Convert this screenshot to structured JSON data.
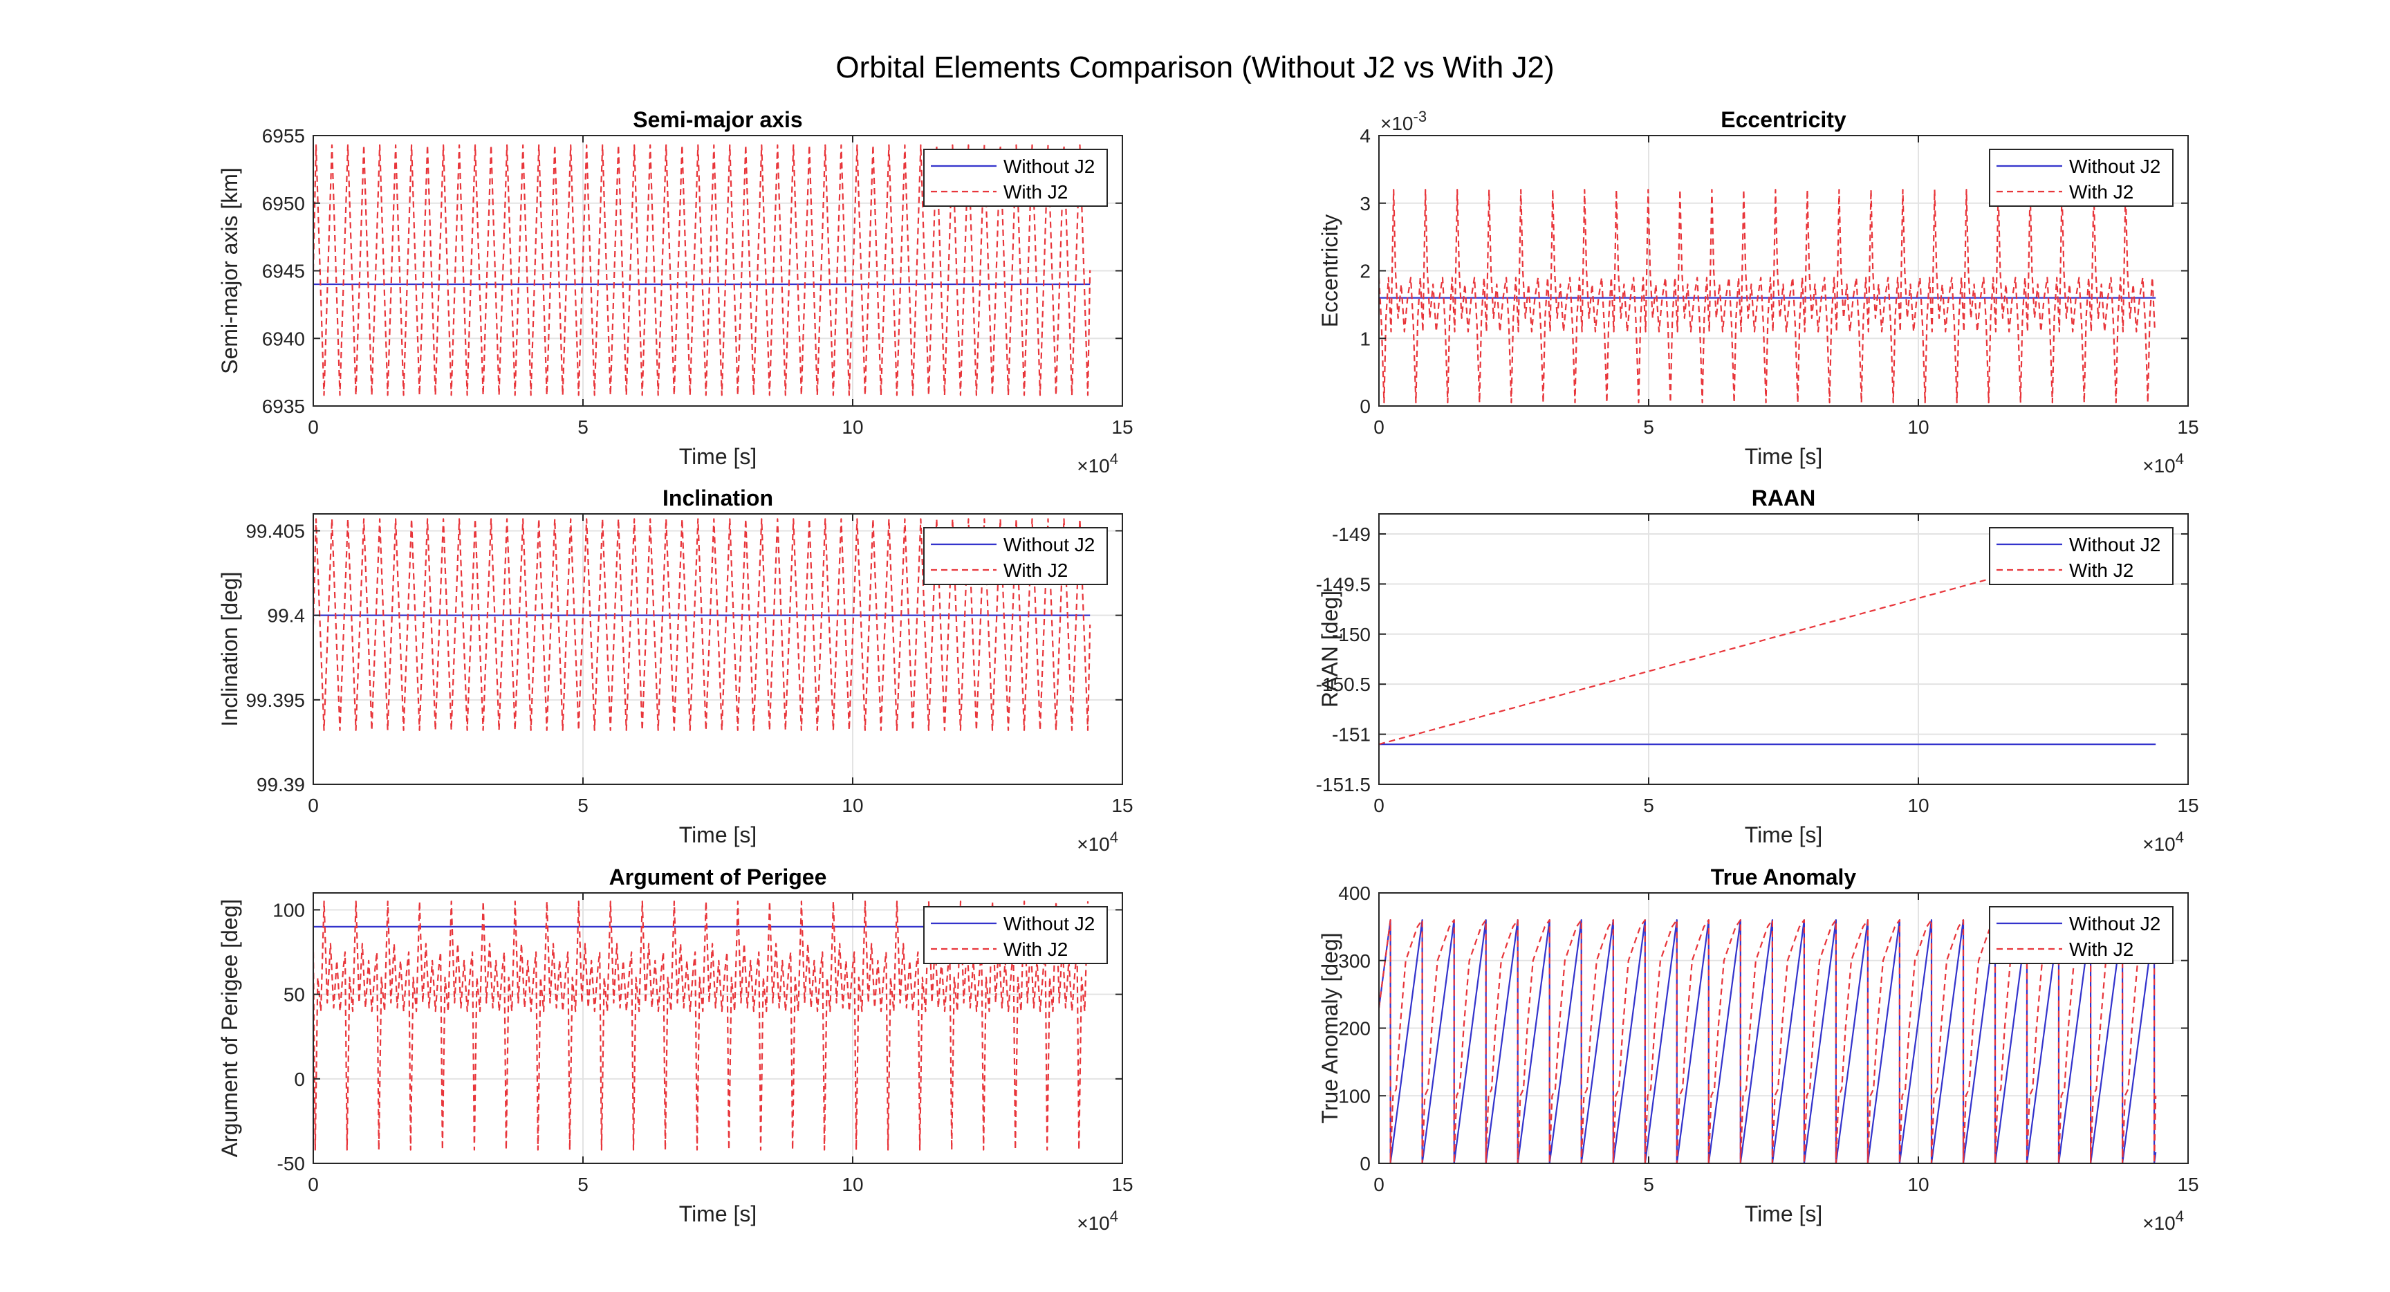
{
  "figure": {
    "title": "Orbital Elements Comparison (Without J2 vs With J2)"
  },
  "colors": {
    "without_j2": "#3333cc",
    "with_j2": "#e8353a",
    "grid": "#e3e3e3",
    "axes": "#262626"
  },
  "chart_data": [
    {
      "type": "line",
      "title": "Semi-major axis",
      "xlabel": "Time [s]",
      "ylabel": "Semi-major axis [km]",
      "xlim": [
        0,
        15
      ],
      "ylim": [
        6935,
        6955
      ],
      "x_exponent": "×10",
      "x_exponent_power": "4",
      "y_exponent": "",
      "y_exponent_power": "",
      "xticks": [
        0,
        5,
        10,
        15
      ],
      "xtick_labels": [
        "0",
        "5",
        "10",
        "15"
      ],
      "yticks": [
        6935,
        6940,
        6945,
        6950,
        6955
      ],
      "ytick_labels": [
        "6935",
        "6940",
        "6945",
        "6950",
        "6955"
      ],
      "grid": true,
      "legend": "top-right",
      "series": [
        {
          "name": "Without J2",
          "style": "solid",
          "kind": "constant",
          "value": 6944,
          "x_end": 14.4
        },
        {
          "name": "With J2",
          "style": "dashed",
          "kind": "oscillation",
          "min": 6935.8,
          "max": 6954.3,
          "period": 0.295,
          "x_end": 14.4
        }
      ]
    },
    {
      "type": "line",
      "title": "Eccentricity",
      "xlabel": "Time [s]",
      "ylabel": "Eccentricity",
      "xlim": [
        0,
        15
      ],
      "ylim": [
        0,
        4
      ],
      "x_exponent": "×10",
      "x_exponent_power": "4",
      "y_exponent": "×10",
      "y_exponent_power": "-3",
      "xticks": [
        0,
        5,
        10,
        15
      ],
      "xtick_labels": [
        "0",
        "5",
        "10",
        "15"
      ],
      "yticks": [
        0,
        1,
        2,
        3,
        4
      ],
      "ytick_labels": [
        "0",
        "1",
        "2",
        "3",
        "4"
      ],
      "grid": true,
      "legend": "top-right",
      "series": [
        {
          "name": "Without J2",
          "style": "solid",
          "kind": "constant",
          "value": 1.6,
          "x_end": 14.4
        },
        {
          "name": "With J2",
          "style": "dashed",
          "kind": "eccentricity",
          "mean": 1.6,
          "period": 0.59,
          "peak": 3.2,
          "trough": 0.05,
          "x_end": 14.4
        }
      ]
    },
    {
      "type": "line",
      "title": "Inclination",
      "xlabel": "Time [s]",
      "ylabel": "Inclination [deg]",
      "xlim": [
        0,
        15
      ],
      "ylim": [
        99.39,
        99.406
      ],
      "x_exponent": "×10",
      "x_exponent_power": "4",
      "y_exponent": "",
      "y_exponent_power": "",
      "xticks": [
        0,
        5,
        10,
        15
      ],
      "xtick_labels": [
        "0",
        "5",
        "10",
        "15"
      ],
      "yticks": [
        99.39,
        99.395,
        99.4,
        99.405
      ],
      "ytick_labels": [
        "99.39",
        "99.395",
        "99.4",
        "99.405"
      ],
      "grid": true,
      "legend": "top-right",
      "series": [
        {
          "name": "Without J2",
          "style": "solid",
          "kind": "constant",
          "value": 99.4,
          "x_end": 14.4
        },
        {
          "name": "With J2",
          "style": "dashed",
          "kind": "oscillation",
          "min": 99.3932,
          "max": 99.4057,
          "period": 0.295,
          "x_end": 14.4
        }
      ]
    },
    {
      "type": "line",
      "title": "RAAN",
      "xlabel": "Time [s]",
      "ylabel": "RAAN [deg]",
      "xlim": [
        0,
        15
      ],
      "ylim": [
        -151.5,
        -148.8
      ],
      "x_exponent": "×10",
      "x_exponent_power": "4",
      "y_exponent": "",
      "y_exponent_power": "",
      "xticks": [
        0,
        5,
        10,
        15
      ],
      "xtick_labels": [
        "0",
        "5",
        "10",
        "15"
      ],
      "yticks": [
        -151.5,
        -151,
        -150.5,
        -150,
        -149.5,
        -149
      ],
      "ytick_labels": [
        "-151.5",
        "-151",
        "-150.5",
        "-150",
        "-149.5",
        "-149"
      ],
      "grid": true,
      "legend": "top-right",
      "series": [
        {
          "name": "Without J2",
          "style": "solid",
          "kind": "constant",
          "value": -151.1,
          "x_end": 14.4
        },
        {
          "name": "With J2",
          "style": "dashed",
          "kind": "linear",
          "y0": -151.1,
          "y1": -149.0,
          "x_end": 14.4
        }
      ]
    },
    {
      "type": "line",
      "title": "Argument of Perigee",
      "xlabel": "Time [s]",
      "ylabel": "Argument of Perigee [deg]",
      "xlim": [
        0,
        15
      ],
      "ylim": [
        -50,
        110
      ],
      "x_exponent": "×10",
      "x_exponent_power": "4",
      "y_exponent": "",
      "y_exponent_power": "",
      "xticks": [
        0,
        5,
        10,
        15
      ],
      "xtick_labels": [
        "0",
        "5",
        "10",
        "15"
      ],
      "yticks": [
        -50,
        0,
        50,
        100
      ],
      "ytick_labels": [
        "-50",
        "0",
        "50",
        "100"
      ],
      "grid": true,
      "legend": "top-right",
      "series": [
        {
          "name": "Without J2",
          "style": "solid",
          "kind": "constant",
          "value": 90,
          "x_end": 14.4
        },
        {
          "name": "With J2",
          "style": "dashed",
          "kind": "perigee",
          "period": 0.59,
          "high": 105,
          "low": -42,
          "band_low": 40,
          "band_high": 80,
          "x_end": 14.4
        }
      ]
    },
    {
      "type": "line",
      "title": "True Anomaly",
      "xlabel": "Time [s]",
      "ylabel": "True Anomaly [deg]",
      "xlim": [
        0,
        15
      ],
      "ylim": [
        0,
        400
      ],
      "x_exponent": "×10",
      "x_exponent_power": "4",
      "y_exponent": "",
      "y_exponent_power": "",
      "xticks": [
        0,
        5,
        10,
        15
      ],
      "xtick_labels": [
        "0",
        "5",
        "10",
        "15"
      ],
      "yticks": [
        0,
        100,
        200,
        300,
        400
      ],
      "ytick_labels": [
        "0",
        "100",
        "200",
        "300",
        "400"
      ],
      "grid": true,
      "legend": "top-right",
      "series": [
        {
          "name": "Without J2",
          "style": "solid",
          "kind": "sawtooth",
          "start": 230,
          "max": 360,
          "period": 0.59,
          "x_end": 14.4
        },
        {
          "name": "With J2",
          "style": "dashed",
          "kind": "sawtooth_j2",
          "start": 230,
          "max": 360,
          "period": 0.59,
          "x_end": 14.4
        }
      ]
    }
  ]
}
